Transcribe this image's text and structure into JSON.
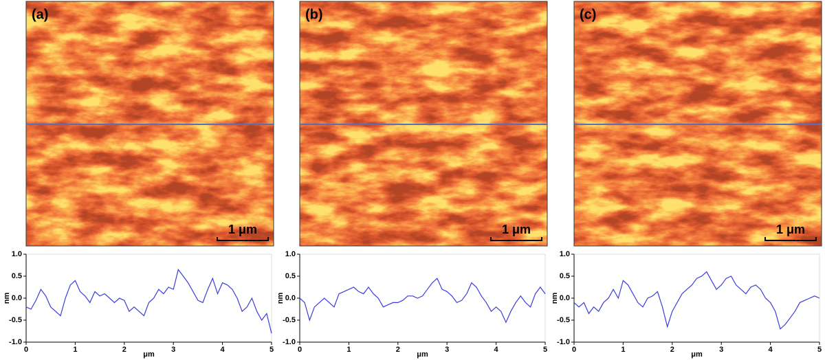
{
  "chart_data": [
    {
      "type": "line",
      "panel_label": "(a)",
      "scale_bar_label": "1 μm",
      "xlabel": "μm",
      "ylabel": "nm",
      "x": [
        0,
        0.1,
        0.2,
        0.3,
        0.4,
        0.5,
        0.6,
        0.7,
        0.8,
        0.9,
        1,
        1.1,
        1.2,
        1.3,
        1.4,
        1.5,
        1.6,
        1.7,
        1.8,
        1.9,
        2,
        2.1,
        2.2,
        2.3,
        2.4,
        2.5,
        2.6,
        2.7,
        2.8,
        2.9,
        3,
        3.1,
        3.2,
        3.3,
        3.4,
        3.5,
        3.6,
        3.7,
        3.8,
        3.9,
        4,
        4.1,
        4.2,
        4.3,
        4.4,
        4.5,
        4.6,
        4.7,
        4.8,
        4.9,
        5
      ],
      "series": [
        {
          "color": "#3b3bdc",
          "values": [
            -0.2,
            -0.25,
            -0.05,
            0.2,
            0.05,
            -0.2,
            -0.3,
            -0.4,
            0.0,
            0.3,
            0.4,
            0.15,
            0.05,
            -0.1,
            0.15,
            0.05,
            0.1,
            0.0,
            -0.1,
            0.0,
            -0.05,
            -0.3,
            -0.2,
            -0.3,
            -0.4,
            -0.1,
            0.0,
            0.2,
            0.1,
            0.25,
            0.2,
            0.65,
            0.5,
            0.35,
            0.15,
            -0.05,
            -0.1,
            0.2,
            0.45,
            0.1,
            0.35,
            0.3,
            0.2,
            0.0,
            -0.3,
            -0.2,
            0.0,
            -0.3,
            -0.5,
            -0.35,
            -0.8
          ]
        }
      ],
      "xlim": [
        0,
        5
      ],
      "ylim": [
        -1,
        1
      ],
      "xticks": [
        0,
        1,
        2,
        3,
        4,
        5
      ],
      "yticks": [
        {
          "value": 1,
          "label": "1.0"
        },
        {
          "value": 0.5,
          "label": "0.5"
        },
        {
          "value": 0,
          "label": "0.0"
        },
        {
          "value": -0.5,
          "label": "-0.5"
        },
        {
          "value": -1,
          "label": "-1.0"
        }
      ]
    },
    {
      "type": "line",
      "panel_label": "(b)",
      "scale_bar_label": "1 μm",
      "xlabel": "μm",
      "ylabel": "nm",
      "x": [
        0,
        0.1,
        0.2,
        0.3,
        0.4,
        0.5,
        0.6,
        0.7,
        0.8,
        0.9,
        1,
        1.1,
        1.2,
        1.3,
        1.4,
        1.5,
        1.6,
        1.7,
        1.8,
        1.9,
        2,
        2.1,
        2.2,
        2.3,
        2.4,
        2.5,
        2.6,
        2.7,
        2.8,
        2.9,
        3,
        3.1,
        3.2,
        3.3,
        3.4,
        3.5,
        3.6,
        3.7,
        3.8,
        3.9,
        4,
        4.1,
        4.2,
        4.3,
        4.4,
        4.5,
        4.6,
        4.7,
        4.8,
        4.9,
        5
      ],
      "series": [
        {
          "color": "#3b3bdc",
          "values": [
            0.0,
            -0.1,
            -0.5,
            -0.2,
            -0.1,
            0.0,
            -0.1,
            -0.2,
            0.1,
            0.15,
            0.2,
            0.25,
            0.15,
            0.1,
            0.25,
            0.1,
            0.0,
            -0.2,
            -0.15,
            -0.1,
            -0.1,
            -0.05,
            0.05,
            0.05,
            0.0,
            0.05,
            0.2,
            0.35,
            0.45,
            0.2,
            0.15,
            0.05,
            -0.1,
            -0.05,
            0.1,
            0.35,
            0.25,
            0.05,
            -0.1,
            -0.3,
            -0.2,
            -0.3,
            -0.55,
            -0.3,
            -0.1,
            0.05,
            -0.1,
            -0.2,
            0.1,
            0.25,
            0.1
          ]
        }
      ],
      "xlim": [
        0,
        5
      ],
      "ylim": [
        -1,
        1
      ],
      "xticks": [
        0,
        1,
        2,
        3,
        4,
        5
      ],
      "yticks": [
        {
          "value": 1,
          "label": "1.0"
        },
        {
          "value": 0.5,
          "label": "0.5"
        },
        {
          "value": 0,
          "label": "0.0"
        },
        {
          "value": -0.5,
          "label": "-0.5"
        },
        {
          "value": -1,
          "label": "-1.0"
        }
      ]
    },
    {
      "type": "line",
      "panel_label": "(c)",
      "scale_bar_label": "1 μm",
      "xlabel": "μm",
      "ylabel": "nm",
      "x": [
        0,
        0.1,
        0.2,
        0.3,
        0.4,
        0.5,
        0.6,
        0.7,
        0.8,
        0.9,
        1,
        1.1,
        1.2,
        1.3,
        1.4,
        1.5,
        1.6,
        1.7,
        1.8,
        1.9,
        2,
        2.1,
        2.2,
        2.3,
        2.4,
        2.5,
        2.6,
        2.7,
        2.8,
        2.9,
        3,
        3.1,
        3.2,
        3.3,
        3.4,
        3.5,
        3.6,
        3.7,
        3.8,
        3.9,
        4,
        4.1,
        4.2,
        4.3,
        4.4,
        4.5,
        4.6,
        4.7,
        4.8,
        4.9,
        5
      ],
      "series": [
        {
          "color": "#3b3bdc",
          "values": [
            -0.1,
            -0.2,
            -0.1,
            -0.35,
            -0.2,
            -0.3,
            -0.1,
            0.0,
            0.2,
            0.0,
            0.4,
            0.3,
            0.1,
            -0.1,
            -0.2,
            0.0,
            0.05,
            0.15,
            -0.2,
            -0.65,
            -0.3,
            -0.1,
            0.1,
            0.2,
            0.3,
            0.45,
            0.5,
            0.6,
            0.4,
            0.2,
            0.3,
            0.45,
            0.5,
            0.3,
            0.2,
            0.1,
            0.25,
            0.3,
            0.2,
            0.0,
            -0.1,
            -0.3,
            -0.7,
            -0.6,
            -0.45,
            -0.3,
            -0.1,
            -0.05,
            0.0,
            0.05,
            0.0
          ]
        }
      ],
      "xlim": [
        0,
        5
      ],
      "ylim": [
        -1,
        1
      ],
      "xticks": [
        0,
        1,
        2,
        3,
        4,
        5
      ],
      "yticks": [
        {
          "value": 1,
          "label": "1.0"
        },
        {
          "value": 0.5,
          "label": "0.5"
        },
        {
          "value": 0,
          "label": "0.0"
        },
        {
          "value": -0.5,
          "label": "-0.5"
        },
        {
          "value": -1,
          "label": "-1.0"
        }
      ]
    }
  ]
}
